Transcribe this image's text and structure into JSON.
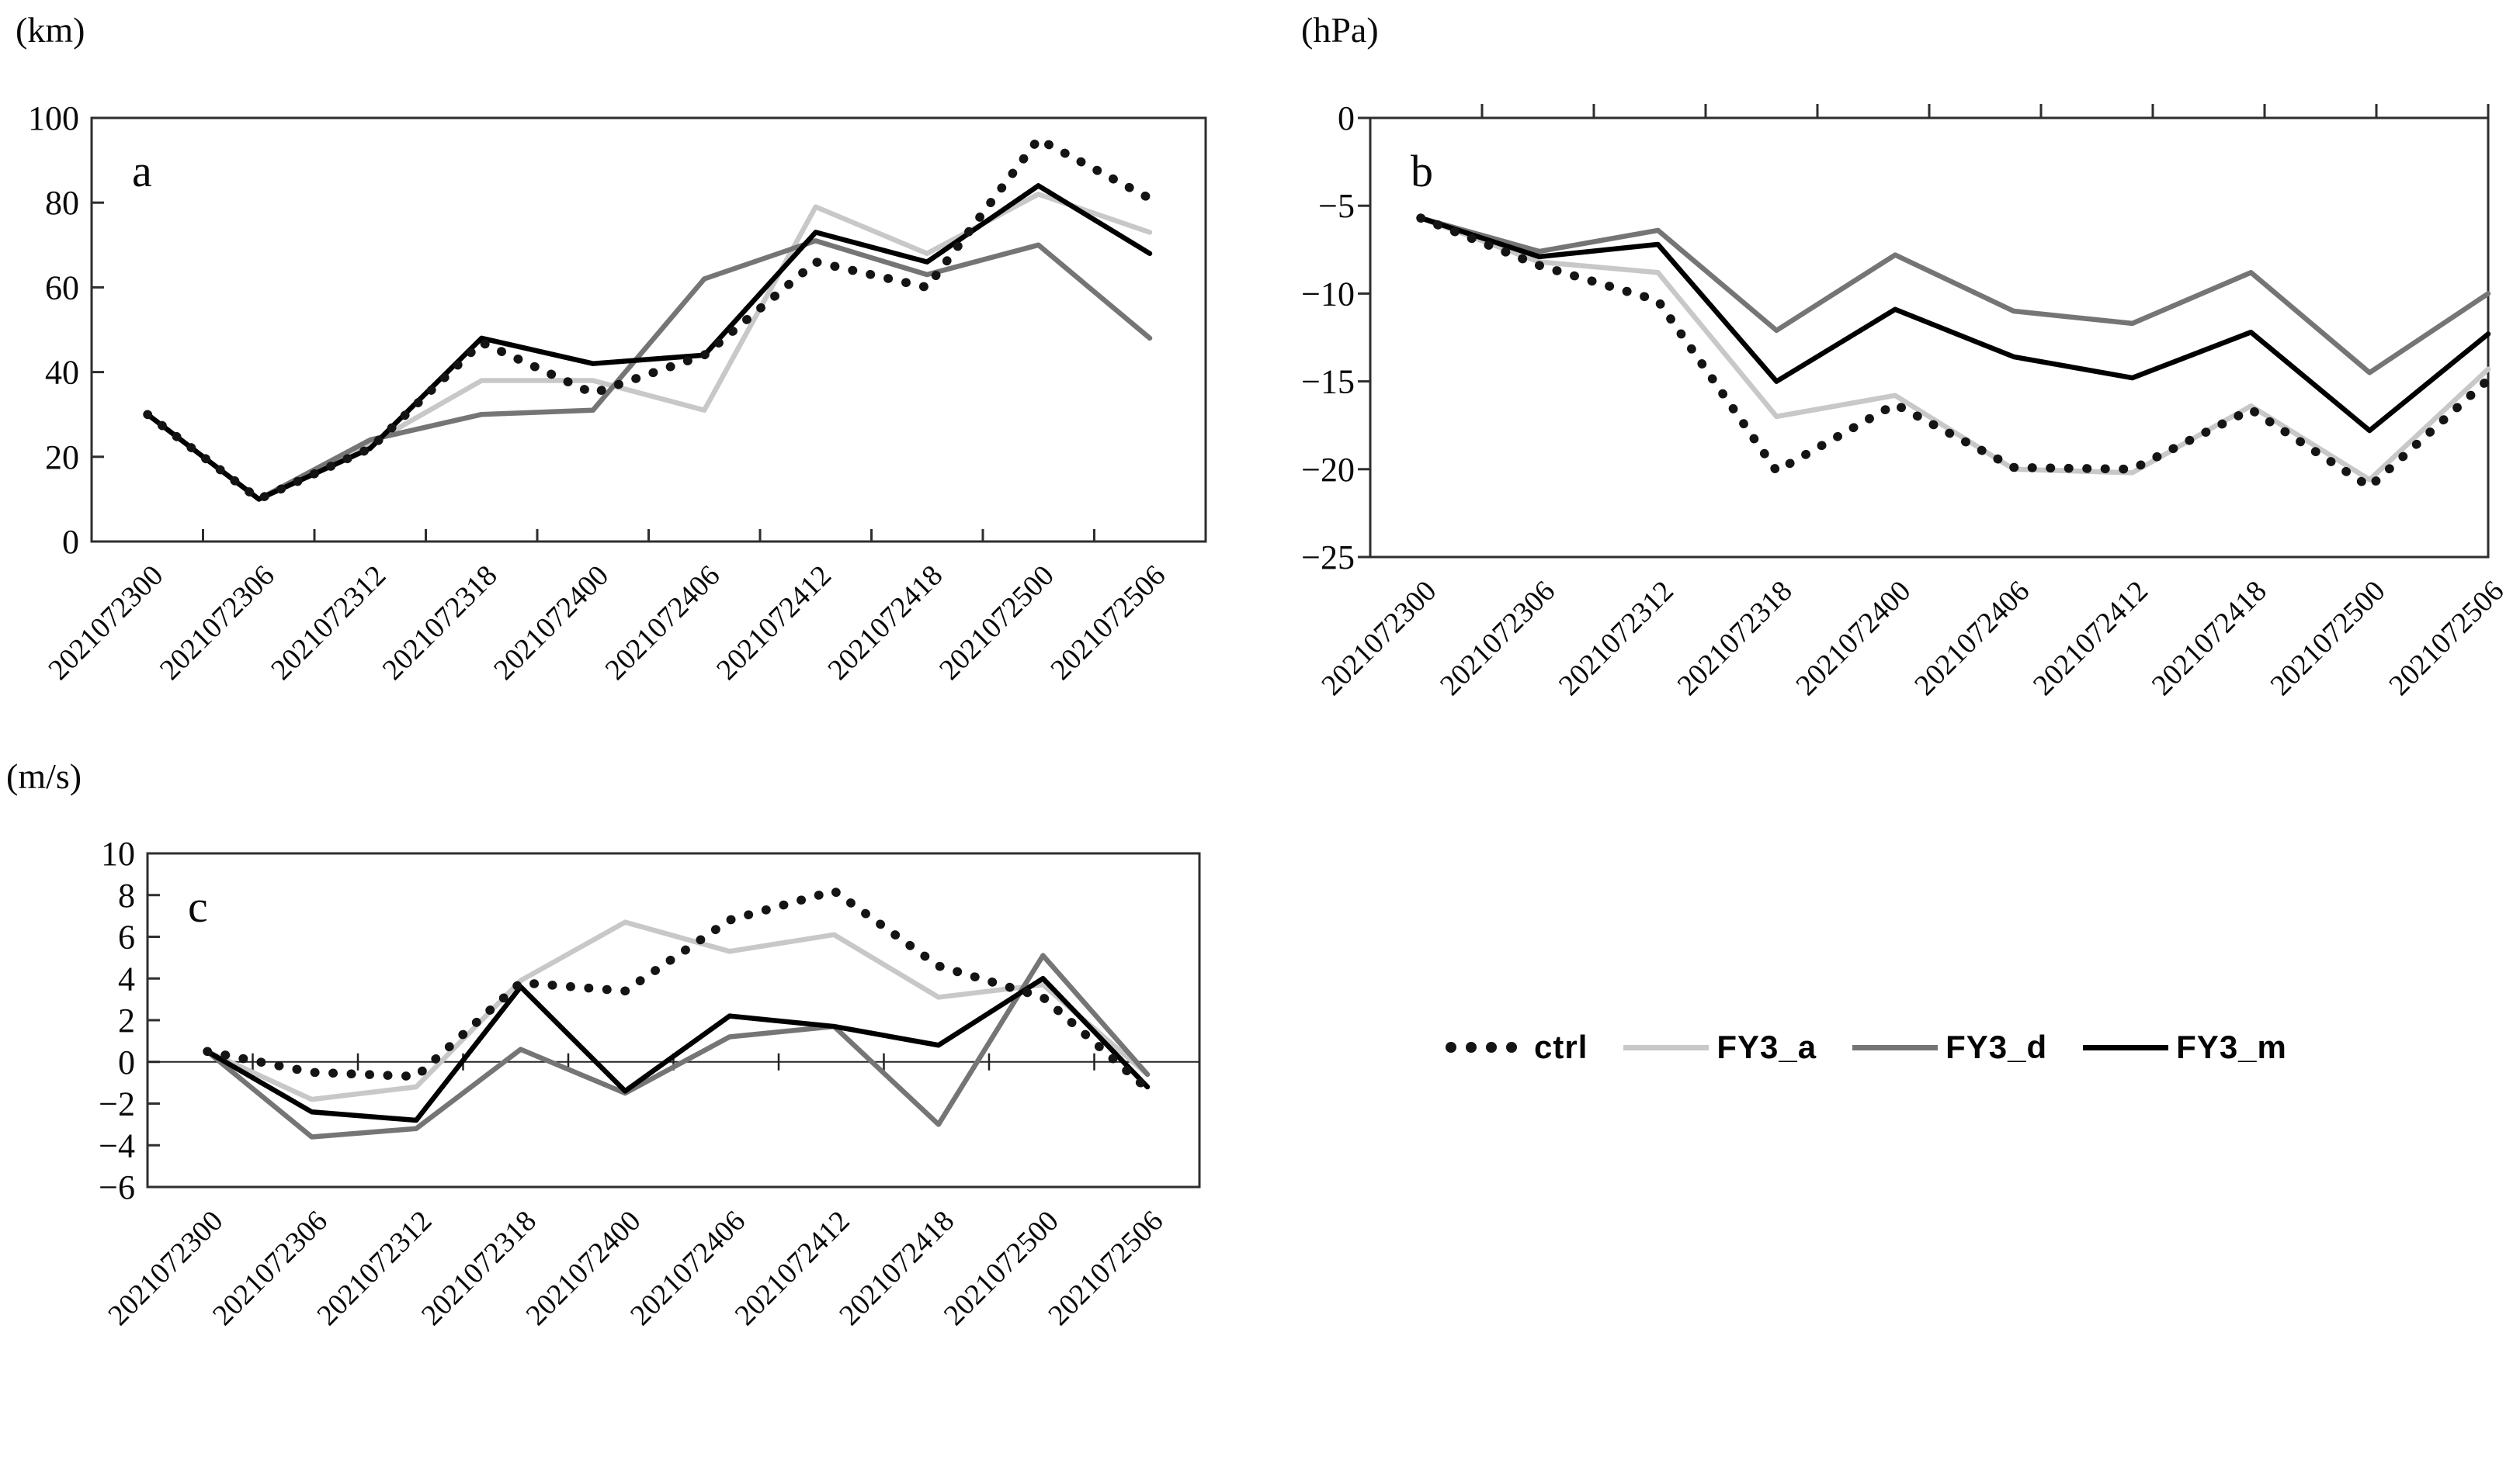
{
  "figure": {
    "background": "#ffffff",
    "description_visible_text_only": true
  },
  "legend": {
    "items": [
      {
        "label": "ctrl",
        "style": "dotted",
        "color": "#141414"
      },
      {
        "label": "FY3_a",
        "style": "solid",
        "color": "#c8c8c8"
      },
      {
        "label": "FY3_d",
        "style": "solid",
        "color": "#757575"
      },
      {
        "label": "FY3_m",
        "style": "solid",
        "color": "#000000"
      }
    ]
  },
  "chart_data": [
    {
      "type": "line",
      "panel_label": "a",
      "ylabel": "(km)",
      "ylim": [
        0,
        100
      ],
      "ytick_step": 20,
      "yticks": [
        0,
        20,
        40,
        60,
        80,
        100
      ],
      "grid": false,
      "legend_position": "shared-bottom-right",
      "categories": [
        "2021072300",
        "2021072306",
        "2021072312",
        "2021072318",
        "2021072400",
        "2021072406",
        "2021072412",
        "2021072418",
        "2021072500",
        "2021072506"
      ],
      "series": [
        {
          "name": "ctrl",
          "style": "dotted",
          "color": "#141414",
          "values": [
            30,
            10,
            22,
            47,
            35,
            44,
            66,
            60,
            95,
            81
          ]
        },
        {
          "name": "FY3_a",
          "style": "solid",
          "color": "#c8c8c8",
          "values": [
            30,
            10,
            23,
            38,
            38,
            31,
            79,
            68,
            82,
            73
          ]
        },
        {
          "name": "FY3_d",
          "style": "solid",
          "color": "#757575",
          "values": [
            30,
            10,
            24,
            30,
            31,
            62,
            71,
            63,
            70,
            48
          ]
        },
        {
          "name": "FY3_m",
          "style": "solid",
          "color": "#000000",
          "values": [
            30,
            10,
            22,
            48,
            42,
            44,
            73,
            66,
            84,
            68
          ]
        }
      ]
    },
    {
      "type": "line",
      "panel_label": "b",
      "ylabel": "(hPa)",
      "ylim": [
        -25,
        0
      ],
      "ytick_step": 5,
      "yticks": [
        0,
        -5,
        -10,
        -15,
        -20,
        -25
      ],
      "grid": false,
      "categories": [
        "2021072300",
        "2021072306",
        "2021072312",
        "2021072318",
        "2021072400",
        "2021072406",
        "2021072412",
        "2021072418",
        "2021072500",
        "2021072506"
      ],
      "series": [
        {
          "name": "ctrl",
          "style": "dotted",
          "color": "#141414",
          "values": [
            -5.7,
            -8.4,
            -10.4,
            -20.1,
            -16.3,
            -19.9,
            -20.0,
            -16.6,
            -21.0,
            -14.9
          ]
        },
        {
          "name": "FY3_a",
          "style": "solid",
          "color": "#c8c8c8",
          "values": [
            -5.7,
            -8.2,
            -8.8,
            -17.0,
            -15.8,
            -20.0,
            -20.2,
            -16.4,
            -20.6,
            -14.3
          ]
        },
        {
          "name": "FY3_d",
          "style": "solid",
          "color": "#757575",
          "values": [
            -5.7,
            -7.6,
            -6.4,
            -12.1,
            -7.8,
            -11.0,
            -11.7,
            -8.8,
            -14.5,
            -10.0
          ]
        },
        {
          "name": "FY3_m",
          "style": "solid",
          "color": "#000000",
          "values": [
            -5.7,
            -7.9,
            -7.2,
            -15.0,
            -10.9,
            -13.6,
            -14.8,
            -12.2,
            -17.8,
            -12.3
          ]
        }
      ]
    },
    {
      "type": "line",
      "panel_label": "c",
      "ylabel": "(m/s)",
      "ylim": [
        -6,
        10
      ],
      "ytick_step": 2,
      "yticks": [
        10,
        8,
        6,
        4,
        2,
        0,
        -2,
        -4,
        -6
      ],
      "zero_line": true,
      "grid": false,
      "categories": [
        "2021072300",
        "2021072306",
        "2021072312",
        "2021072318",
        "2021072400",
        "2021072406",
        "2021072412",
        "2021072418",
        "2021072500",
        "2021072506"
      ],
      "series": [
        {
          "name": "ctrl",
          "style": "dotted",
          "color": "#141414",
          "values": [
            0.5,
            -0.5,
            -0.7,
            3.8,
            3.4,
            6.8,
            8.2,
            4.6,
            3.1,
            -1.3
          ]
        },
        {
          "name": "FY3_a",
          "style": "solid",
          "color": "#c8c8c8",
          "values": [
            0.5,
            -1.8,
            -1.2,
            3.9,
            6.7,
            5.3,
            6.1,
            3.1,
            3.7,
            -0.6
          ]
        },
        {
          "name": "FY3_d",
          "style": "solid",
          "color": "#757575",
          "values": [
            0.5,
            -3.6,
            -3.2,
            0.6,
            -1.5,
            1.2,
            1.7,
            -3.0,
            5.1,
            -0.6
          ]
        },
        {
          "name": "FY3_m",
          "style": "solid",
          "color": "#000000",
          "values": [
            0.5,
            -2.4,
            -2.8,
            3.6,
            -1.4,
            2.2,
            1.7,
            0.8,
            4.0,
            -1.2
          ]
        }
      ]
    }
  ]
}
